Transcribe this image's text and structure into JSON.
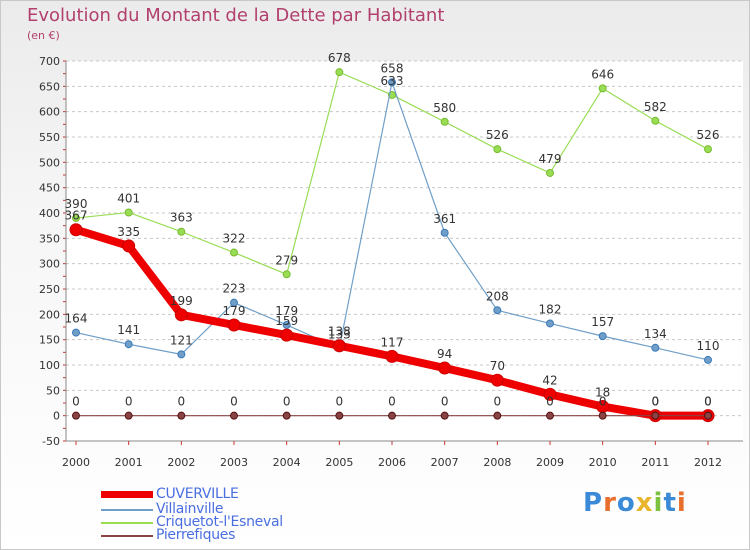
{
  "title": "Evolution du Montant de la Dette par Habitant",
  "subtitle": "(en €)",
  "logo_text": "Proxiti",
  "chart_data": {
    "type": "line",
    "x": [
      "2000",
      "2001",
      "2002",
      "2003",
      "2004",
      "2005",
      "2006",
      "2007",
      "2008",
      "2009",
      "2010",
      "2011",
      "2012"
    ],
    "ylim": [
      -50,
      700
    ],
    "yticks": [
      -50,
      0,
      50,
      100,
      150,
      200,
      250,
      300,
      350,
      400,
      450,
      500,
      550,
      600,
      650,
      700
    ],
    "grid": "horizontal-dashed",
    "legend": "bottom-left",
    "series": [
      {
        "name": "CUVERVILLE",
        "color": "#ee0000",
        "values": [
          367,
          335,
          199,
          179,
          159,
          138,
          117,
          94,
          70,
          42,
          18,
          0,
          0
        ]
      },
      {
        "name": "Villainville",
        "color": "#6f9fc8",
        "values": [
          164,
          141,
          121,
          223,
          179,
          133,
          658,
          361,
          208,
          182,
          157,
          134,
          110
        ]
      },
      {
        "name": "Criquetot-l'Esneval",
        "color": "#99dd55",
        "values": [
          390,
          401,
          363,
          322,
          279,
          678,
          633,
          580,
          526,
          479,
          646,
          582,
          526
        ]
      },
      {
        "name": "Pierrefiques",
        "color": "#884444",
        "values": [
          0,
          0,
          0,
          0,
          0,
          0,
          0,
          0,
          0,
          0,
          0,
          0,
          0
        ]
      }
    ]
  }
}
